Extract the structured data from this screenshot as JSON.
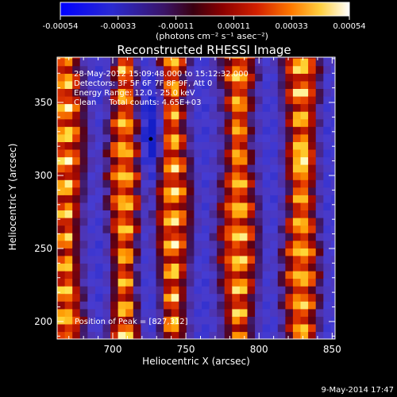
{
  "colorbar": {
    "ticks": [
      "-0.00054",
      "-0.00033",
      "-0.00011",
      "0.00011",
      "0.00033",
      "0.00054"
    ],
    "units_label": "(photons cm⁻² s⁻¹ asec⁻²)",
    "range": [
      -0.00054,
      0.00054
    ],
    "colors": [
      "#0000ff",
      "#2a1a8a",
      "#4a0a2a",
      "#7a0000",
      "#c81a00",
      "#ff5a00",
      "#ffb400",
      "#ffff70",
      "#ffffff"
    ]
  },
  "chart_data": {
    "type": "heatmap",
    "title": "Reconstructed RHESSI Image",
    "xlabel": "Heliocentric X (arcsec)",
    "ylabel": "Heliocentric Y (arcsec)",
    "xlim": [
      662,
      852
    ],
    "ylim": [
      188,
      381
    ],
    "xticks": [
      700,
      750,
      800,
      850
    ],
    "yticks": [
      200,
      250,
      300,
      350
    ],
    "annotations": [
      "28-May-2012 15:09:48.000 to 15:12:32.000",
      "Detectors: 3F 5F 6F 7F 8F 9F, Att 0",
      "Energy Range: 12.0 - 25.0 keV",
      "Clean     Total counts: 4.65E+03"
    ],
    "peak_label": "Position of Peak = [827,312]",
    "min_marker": [
      726,
      325
    ],
    "pattern": {
      "description_units": "arcsec",
      "bright_columns_x": [
        668,
        708,
        741,
        786,
        829
      ],
      "dim_columns_x": [
        690,
        725,
        762,
        808,
        848
      ],
      "stripe_period": 42,
      "vertical_period": 18
    }
  },
  "footer": {
    "date": "9-May-2014 17:47"
  }
}
